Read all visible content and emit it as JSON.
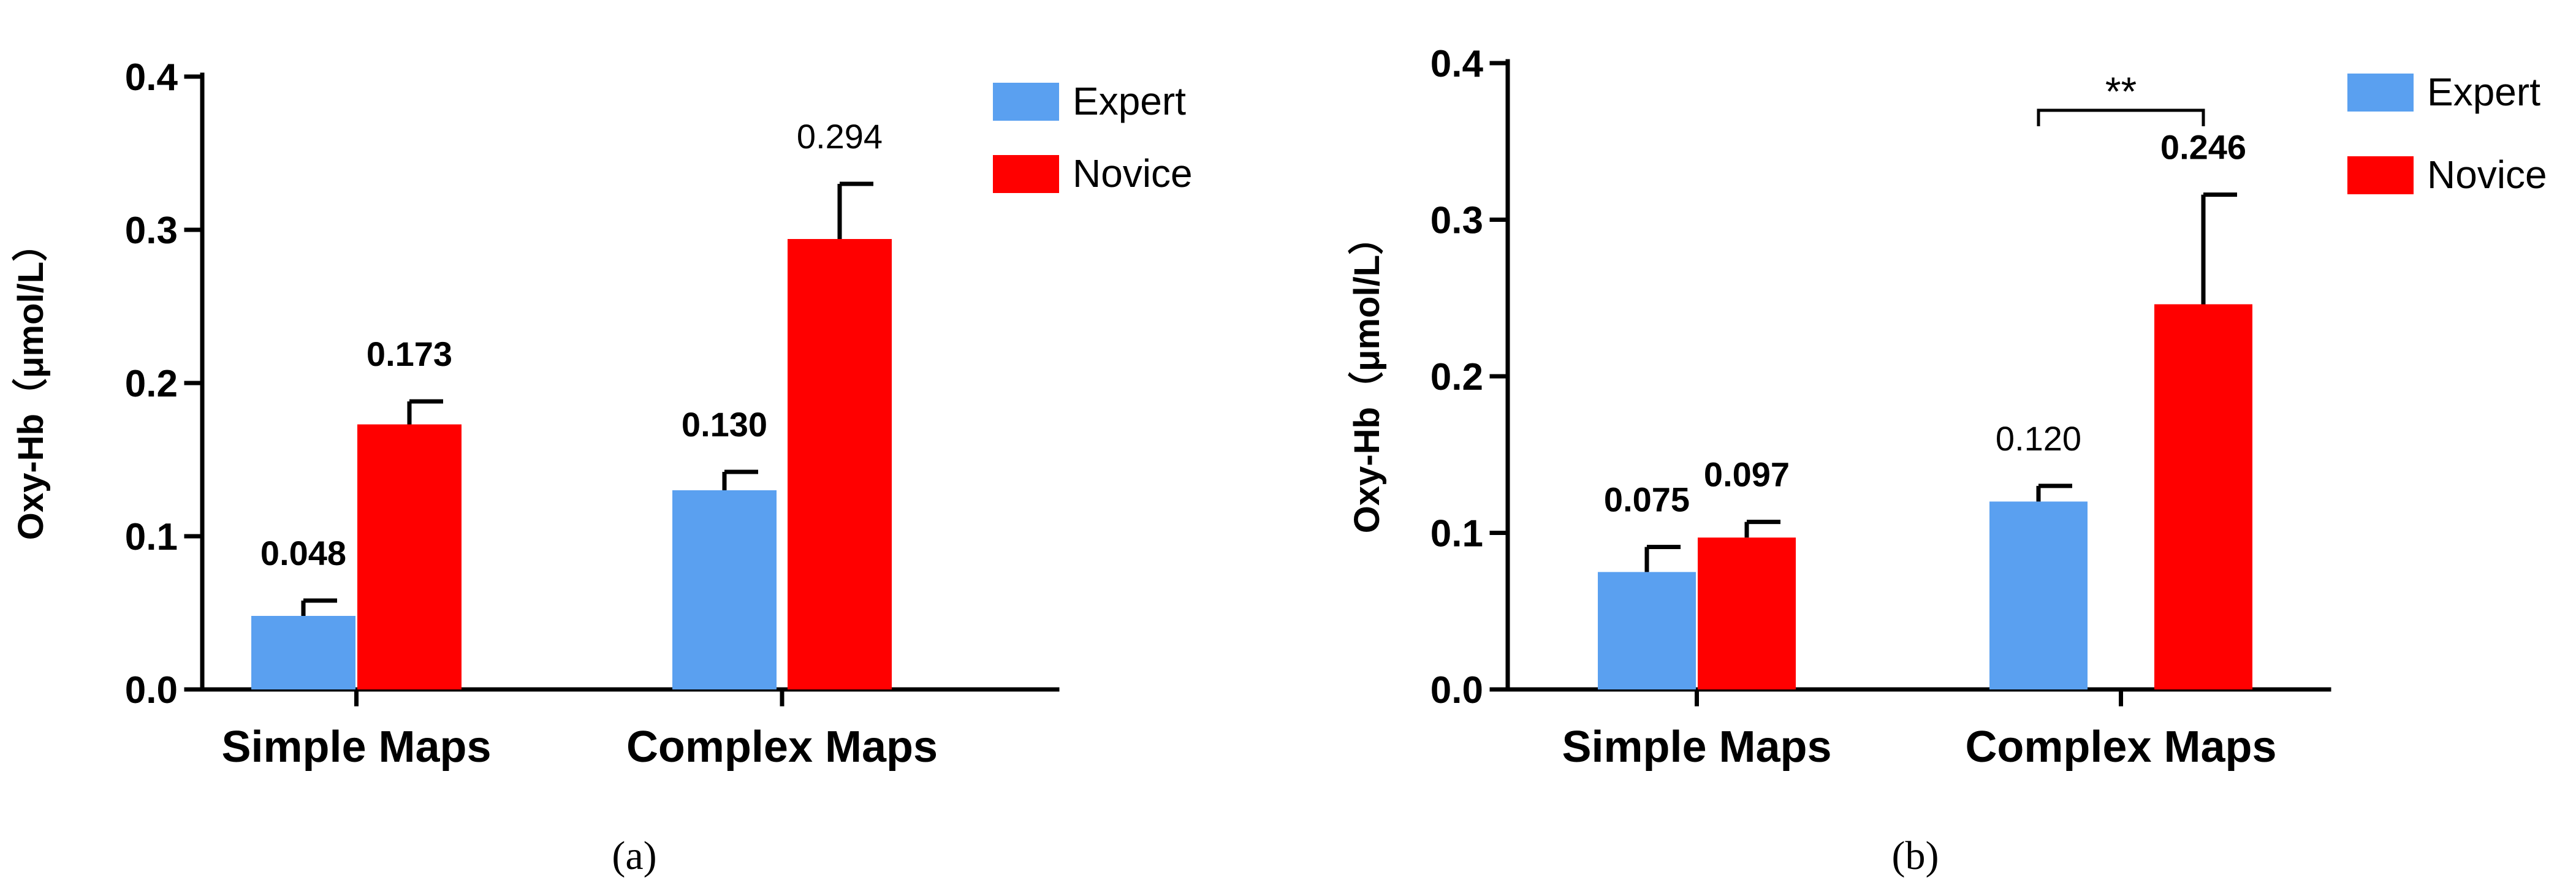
{
  "caption_a": "(a)",
  "caption_b": "(b)",
  "colors": {
    "expert": "#5aa0f0",
    "novice": "#ff0000"
  },
  "chart_data": [
    {
      "type": "bar",
      "ylabel": "Oxy-Hb（μmol/L）",
      "ylim": [
        0,
        0.4
      ],
      "yticks": [
        "0.0",
        "0.1",
        "0.2",
        "0.3",
        "0.4"
      ],
      "categories": [
        "Simple Maps",
        "Complex Maps"
      ],
      "legend_position": "top-right",
      "series": [
        {
          "name": "Expert",
          "values": [
            0.048,
            0.13
          ],
          "errors": [
            0.01,
            0.012
          ],
          "labels": [
            "0.048",
            "0.130"
          ],
          "label_bold": [
            true,
            true
          ]
        },
        {
          "name": "Novice",
          "values": [
            0.173,
            0.294
          ],
          "errors": [
            0.015,
            0.036
          ],
          "labels": [
            "0.173",
            "0.294"
          ],
          "label_bold": [
            true,
            false
          ]
        }
      ],
      "annotation": null
    },
    {
      "type": "bar",
      "ylabel": "Oxy-Hb（μmol/L）",
      "ylim": [
        0,
        0.4
      ],
      "yticks": [
        "0.0",
        "0.1",
        "0.2",
        "0.3",
        "0.4"
      ],
      "categories": [
        "Simple Maps",
        "Complex Maps"
      ],
      "legend_position": "top-right",
      "series": [
        {
          "name": "Expert",
          "values": [
            0.075,
            0.12
          ],
          "errors": [
            0.016,
            0.01
          ],
          "labels": [
            "0.075",
            "0.120"
          ],
          "label_bold": [
            true,
            false
          ]
        },
        {
          "name": "Novice",
          "values": [
            0.097,
            0.246
          ],
          "errors": [
            0.01,
            0.07
          ],
          "labels": [
            "0.097",
            "0.246"
          ],
          "label_bold": [
            true,
            true
          ]
        }
      ],
      "annotation": {
        "text": "**",
        "category": "Complex Maps"
      }
    }
  ]
}
